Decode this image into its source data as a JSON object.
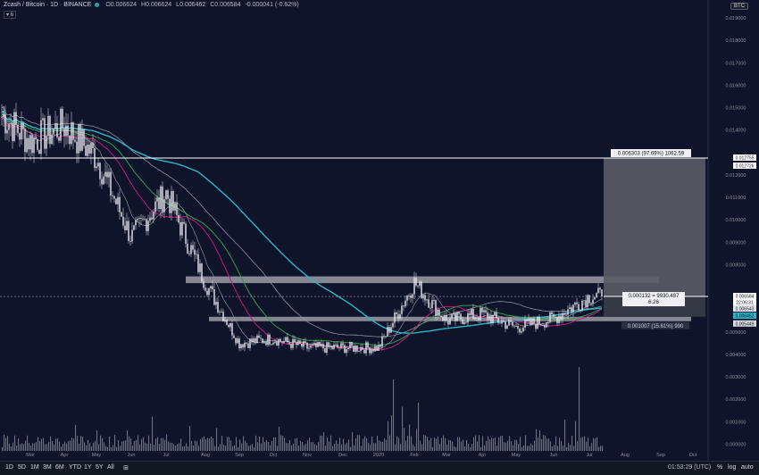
{
  "header": {
    "symbol": "Zcash / Bitcoin · 1D · BINANCE",
    "open_label": "O",
    "open": "0.006624",
    "high_label": "H",
    "high": "0.006624",
    "low_label": "L",
    "low": "0.006462",
    "close_label": "C",
    "close": "0.006584",
    "change": "-0.000041 (-0.62%)",
    "indicator_label": "6"
  },
  "currency_badge": "BTC",
  "bottom_bar": {
    "ranges": [
      "1D",
      "5D",
      "1M",
      "3M",
      "6M",
      "YTD",
      "1Y",
      "5Y",
      "All"
    ],
    "time": "01:53:29 (UTC)",
    "percent": "%",
    "log": "log",
    "auto": "auto"
  },
  "colors": {
    "background": "#10142a",
    "candles": "#e8e8ee",
    "ema_cyan": "#2bb5c8",
    "ema_magenta": "#c2187a",
    "ema_green": "#2e9d4b",
    "ma_gray": "#8a8d99",
    "zone": "#9a9ca6",
    "measure_box": "#5a5c66"
  },
  "chart_data": {
    "type": "line",
    "title": "Zcash / Bitcoin · 1D · BINANCE",
    "x_tick_labels": [
      "Mar",
      "Apr",
      "May",
      "Jun",
      "Jul",
      "Aug",
      "Sep",
      "Oct",
      "Nov",
      "Dec",
      "2020",
      "Feb",
      "Mar",
      "Apr",
      "May",
      "Jun",
      "Jul",
      "Aug",
      "Sep",
      "Oct",
      "Nov"
    ],
    "y_tick_labels": [
      "0.019000",
      "0.018000",
      "0.017000",
      "0.016000",
      "0.015000",
      "0.014000",
      "0.012000",
      "0.011000",
      "0.010000",
      "0.009000",
      "0.008000",
      "0.005000",
      "0.004000",
      "0.003000",
      "0.002000",
      "0.001000",
      "0.000000"
    ],
    "ylim": [
      -0.0003,
      0.0198
    ],
    "price_series": {
      "name": "",
      "x": [
        "Feb",
        "Mar",
        "Apr",
        "May",
        "Jun",
        "Jul",
        "Aug",
        "Sep",
        "Oct",
        "Nov",
        "Dec",
        "2020",
        "Feb",
        "Mar",
        "Apr",
        "May",
        "Jun",
        "Jul"
      ],
      "values": [
        0.0146,
        0.0135,
        0.0142,
        0.0128,
        0.0092,
        0.0112,
        0.0072,
        0.0045,
        0.0047,
        0.0043,
        0.0043,
        0.0043,
        0.0072,
        0.0055,
        0.0058,
        0.0052,
        0.0056,
        0.0066
      ]
    },
    "horizontal_line_value": 0.012755,
    "current_price": 0.006584,
    "resistance_zone": [
      0.00718,
      0.00748
    ],
    "support_zone": [
      0.00548,
      0.00568
    ],
    "measure_labels": {
      "top": "0.006303 (97.69%) 1062.59",
      "mid_line1": "0.000132 = 9930.487",
      "mid_line2": "6.26",
      "bottom": "0.001007 (15.61%) 990"
    },
    "price_tags": [
      "0.012755",
      "0.012726",
      "0.006584",
      "22:06:31",
      "0.006543",
      "0.006452",
      "0.005449"
    ],
    "grid": false
  }
}
